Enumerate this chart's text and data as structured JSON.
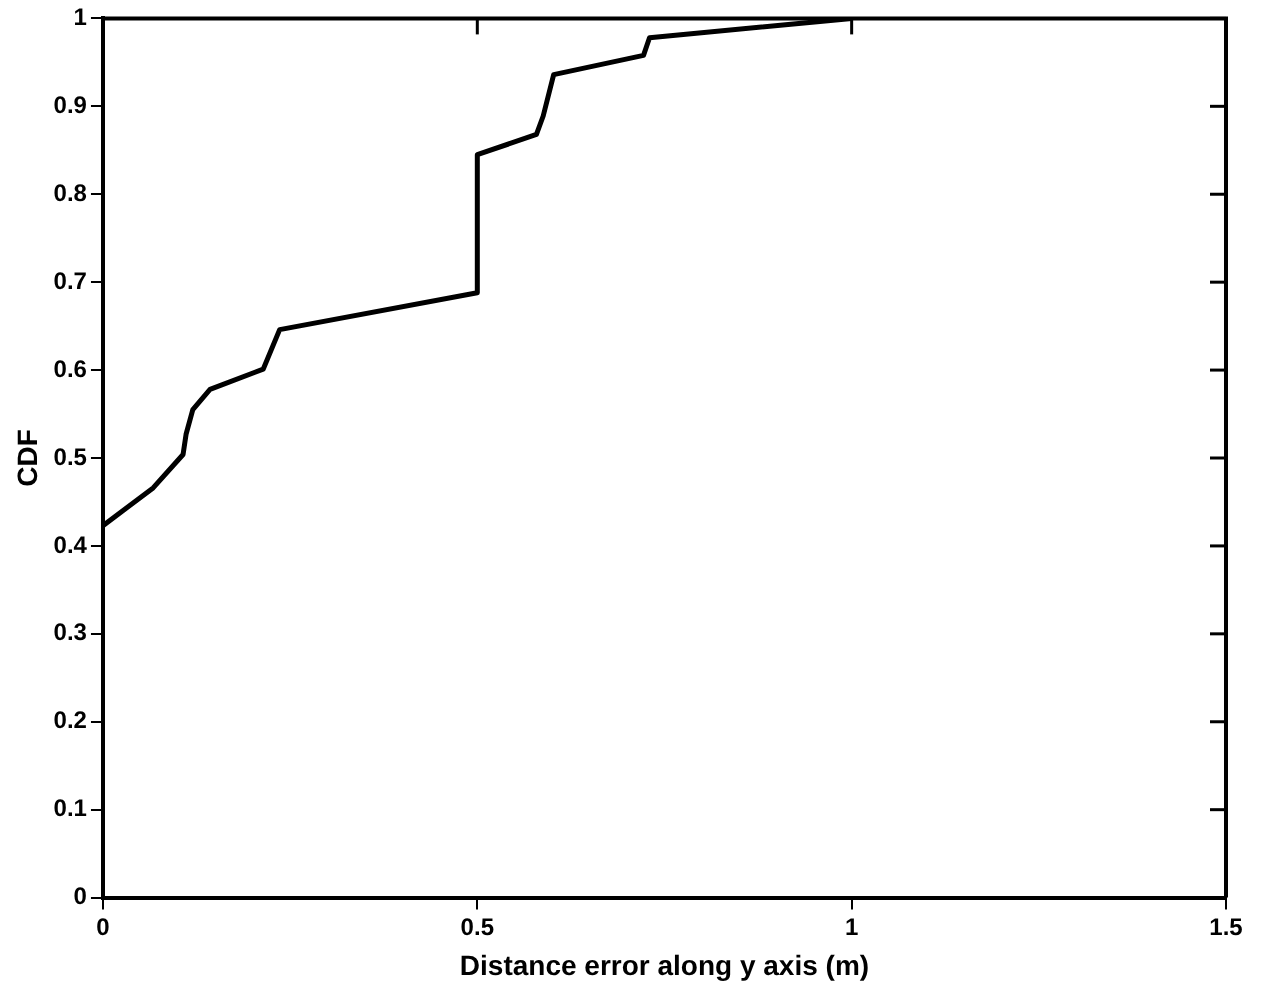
{
  "chart_data": {
    "type": "line",
    "xlabel": "Distance error along y axis (m)",
    "ylabel": "CDF",
    "series": [
      {
        "color": "#000000",
        "x": [
          0,
          0.067,
          0.107,
          0.111,
          0.12,
          0.143,
          0.214,
          0.236,
          0.5,
          0.5,
          0.579,
          0.588,
          0.602,
          0.722,
          0.73,
          1
        ],
        "values": [
          0.423,
          0.466,
          0.504,
          0.527,
          0.555,
          0.578,
          0.601,
          0.646,
          0.688,
          0.845,
          0.868,
          0.889,
          0.936,
          0.958,
          0.978,
          1
        ]
      }
    ],
    "xlim": [
      0,
      1.5
    ],
    "xticks": [
      0,
      0.5,
      1,
      1.5
    ],
    "ylim": [
      0,
      1
    ],
    "yticks": [
      0,
      0.1,
      0.2,
      0.3,
      0.4,
      0.5,
      0.6,
      0.7,
      0.8,
      0.9,
      1
    ],
    "grid": false,
    "legend": false,
    "marker": "none",
    "line_style": "solid"
  }
}
